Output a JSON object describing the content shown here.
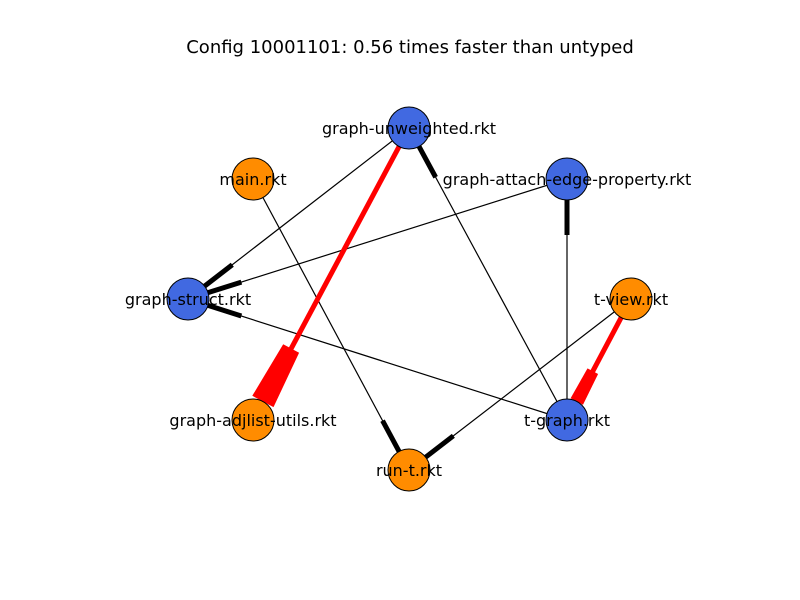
{
  "diagram": {
    "title": "Config 10001101: 0.56 times faster than untyped",
    "colors": {
      "typed": "#4169E1",
      "untyped": "#FF8C00",
      "edge": "#000000",
      "edge_slow": "#FF0000"
    },
    "nodes": [
      {
        "id": "graph-unweighted",
        "label": "graph-unweighted.rkt",
        "typed": true
      },
      {
        "id": "main",
        "label": "main.rkt",
        "typed": false
      },
      {
        "id": "graph-attach-edge-property",
        "label": "graph-attach-edge-property.rkt",
        "typed": true
      },
      {
        "id": "graph-struct",
        "label": "graph-struct.rkt",
        "typed": true
      },
      {
        "id": "t-view",
        "label": "t-view.rkt",
        "typed": false
      },
      {
        "id": "graph-adjlist-utils",
        "label": "graph-adjlist-utils.rkt",
        "typed": false
      },
      {
        "id": "t-graph",
        "label": "t-graph.rkt",
        "typed": true
      },
      {
        "id": "run-t",
        "label": "run-t.rkt",
        "typed": false
      }
    ],
    "edges": [
      {
        "from": "graph-unweighted",
        "to": "graph-struct",
        "slow": false
      },
      {
        "from": "graph-attach-edge-property",
        "to": "graph-struct",
        "slow": false
      },
      {
        "from": "t-graph",
        "to": "graph-struct",
        "slow": false
      },
      {
        "from": "t-graph",
        "to": "graph-unweighted",
        "slow": false
      },
      {
        "from": "t-graph",
        "to": "graph-attach-edge-property",
        "slow": false
      },
      {
        "from": "main",
        "to": "run-t",
        "slow": false
      },
      {
        "from": "t-view",
        "to": "run-t",
        "slow": false
      },
      {
        "from": "graph-unweighted",
        "to": "graph-adjlist-utils",
        "slow": true
      },
      {
        "from": "t-view",
        "to": "t-graph",
        "slow": true
      }
    ]
  }
}
